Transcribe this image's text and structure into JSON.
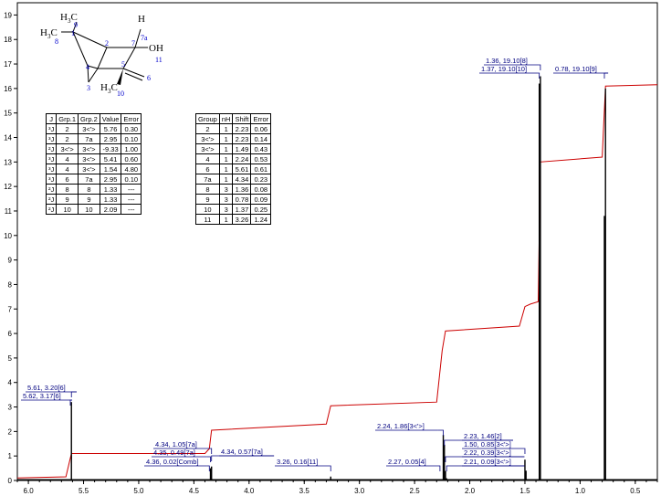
{
  "chart_data": {
    "type": "line",
    "title": "",
    "xlabel": "",
    "ylabel": "",
    "xlim": [
      6.1,
      0.3
    ],
    "ylim": [
      0,
      19.5
    ],
    "x_reversed": true,
    "x_ticks": [
      "6.0",
      "5.5",
      "5.0",
      "4.5",
      "4.0",
      "3.5",
      "3.0",
      "2.5",
      "2.0",
      "1.5",
      "1.0",
      "0.5"
    ],
    "x_tick_values": [
      6.0,
      5.5,
      5.0,
      4.5,
      4.0,
      3.5,
      3.0,
      2.5,
      2.0,
      1.5,
      1.0,
      0.5
    ],
    "y_ticks": [
      "0",
      "1",
      "2",
      "3",
      "4",
      "5",
      "6",
      "7",
      "8",
      "9",
      "10",
      "11",
      "12",
      "13",
      "14",
      "15",
      "16",
      "17",
      "18",
      "19"
    ],
    "y_tick_values": [
      0,
      1,
      2,
      3,
      4,
      5,
      6,
      7,
      8,
      9,
      10,
      11,
      12,
      13,
      14,
      15,
      16,
      17,
      18,
      19
    ],
    "colors": {
      "spectrum": "#000000",
      "integral": "#cc0000",
      "label": "#000080",
      "frame": "#000000"
    },
    "spectrum_peaks": [
      {
        "x": 5.61,
        "h": 3.2
      },
      {
        "x": 4.35,
        "h": 0.5
      },
      {
        "x": 4.34,
        "h": 0.57
      },
      {
        "x": 3.26,
        "h": 0.16
      },
      {
        "x": 2.27,
        "h": 0.05
      },
      {
        "x": 2.24,
        "h": 1.86
      },
      {
        "x": 2.23,
        "h": 1.46
      },
      {
        "x": 2.22,
        "h": 0.39
      },
      {
        "x": 2.21,
        "h": 0.09
      },
      {
        "x": 1.5,
        "h": 0.85
      },
      {
        "x": 1.49,
        "h": 0.4
      },
      {
        "x": 1.37,
        "h": 16.2
      },
      {
        "x": 1.36,
        "h": 16.5
      },
      {
        "x": 0.78,
        "h": 10.8
      },
      {
        "x": 0.77,
        "h": 16.0
      }
    ],
    "integral_curve": [
      [
        6.1,
        0.1
      ],
      [
        5.66,
        0.15
      ],
      [
        5.61,
        1.1
      ],
      [
        4.4,
        1.1
      ],
      [
        4.36,
        1.3
      ],
      [
        4.34,
        2.05
      ],
      [
        3.3,
        2.3
      ],
      [
        3.26,
        3.05
      ],
      [
        2.3,
        3.2
      ],
      [
        2.25,
        5.3
      ],
      [
        2.22,
        6.1
      ],
      [
        1.55,
        6.3
      ],
      [
        1.5,
        7.1
      ],
      [
        1.45,
        7.2
      ],
      [
        1.38,
        7.3
      ],
      [
        1.36,
        13.0
      ],
      [
        0.8,
        13.2
      ],
      [
        0.77,
        16.1
      ],
      [
        0.3,
        16.15
      ]
    ],
    "peak_labels": [
      {
        "text": "5.61, 3.20[6]",
        "x": 5.61
      },
      {
        "text": "5.62, 3.17[6]",
        "x": 5.62
      },
      {
        "text": "4.34, 1.05[7a]",
        "x": 4.34
      },
      {
        "text": "4.35, 0.49[7a]",
        "x": 4.35
      },
      {
        "text": "4.36, 0.02[Comb]",
        "x": 4.36
      },
      {
        "text": "4.34, 0.57[7a]",
        "x": 4.34
      },
      {
        "text": "3.26, 0.16[11]",
        "x": 3.26
      },
      {
        "text": "2.24, 1.86[3<'>]",
        "x": 2.24
      },
      {
        "text": "2.27, 0.05[4]",
        "x": 2.27
      },
      {
        "text": "2.23, 1.46[2]",
        "x": 2.23
      },
      {
        "text": "1.50, 0.85[3<'>]",
        "x": 1.5
      },
      {
        "text": "2.22, 0.39[3<'>]",
        "x": 2.22
      },
      {
        "text": "2.21, 0.09[3<'>]",
        "x": 2.21
      },
      {
        "text": "1.36, 19.10[8]",
        "x": 1.36
      },
      {
        "text": "1.37, 19.10[10]",
        "x": 1.37
      },
      {
        "text": "0.78, 19.10[9]",
        "x": 0.78
      }
    ]
  },
  "structure": {
    "atoms": [
      {
        "id": "H3C-9",
        "main": "H",
        "sub": "3",
        "tail": "C",
        "num": "9"
      },
      {
        "id": "H3C-8",
        "main": "H",
        "sub": "3",
        "tail": "C",
        "num": "8"
      },
      {
        "id": "H-7a",
        "main": "H",
        "num": "7a"
      },
      {
        "id": "OH",
        "main": "OH",
        "num": "11"
      },
      {
        "id": "H3C-10",
        "main": "H",
        "sub": "3",
        "tail": "C",
        "num": "10"
      }
    ],
    "ring_numbers": [
      "1",
      "2",
      "7",
      "4",
      "5",
      "6",
      "3"
    ]
  },
  "coupling_table": {
    "headers": [
      "J",
      "Grp.1",
      "Grp.2",
      "Value",
      "Error"
    ],
    "rows": [
      [
        "³J",
        "2",
        "3<'>",
        "5.76",
        "0.30"
      ],
      [
        "³J",
        "2",
        "7a",
        "2.95",
        "0.10"
      ],
      [
        "²J",
        "3<'>",
        "3<'>",
        "-9.33",
        "1.00"
      ],
      [
        "³J",
        "4",
        "3<'>",
        "5.41",
        "0.60"
      ],
      [
        "³J",
        "4",
        "3<'>",
        "1.54",
        "4.80"
      ],
      [
        "³J",
        "6",
        "7a",
        "2.95",
        "0.10"
      ],
      [
        "²J",
        "8",
        "8",
        "1.33",
        "---"
      ],
      [
        "²J",
        "9",
        "9",
        "1.33",
        "---"
      ],
      [
        "²J",
        "10",
        "10",
        "2.09",
        "---"
      ]
    ]
  },
  "shift_table": {
    "headers": [
      "Group",
      "nH",
      "Shift",
      "Error"
    ],
    "rows": [
      [
        "2",
        "1",
        "2.23",
        "0.06"
      ],
      [
        "3<'>",
        "1",
        "2.23",
        "0.14"
      ],
      [
        "3<'>",
        "1",
        "1.49",
        "0.43"
      ],
      [
        "4",
        "1",
        "2.24",
        "0.53"
      ],
      [
        "6",
        "1",
        "5.61",
        "0.61"
      ],
      [
        "7a",
        "1",
        "4.34",
        "0.23"
      ],
      [
        "8",
        "3",
        "1.36",
        "0.08"
      ],
      [
        "9",
        "3",
        "0.78",
        "0.09"
      ],
      [
        "10",
        "3",
        "1.37",
        "0.25"
      ],
      [
        "11",
        "1",
        "3.26",
        "1.24"
      ]
    ]
  }
}
